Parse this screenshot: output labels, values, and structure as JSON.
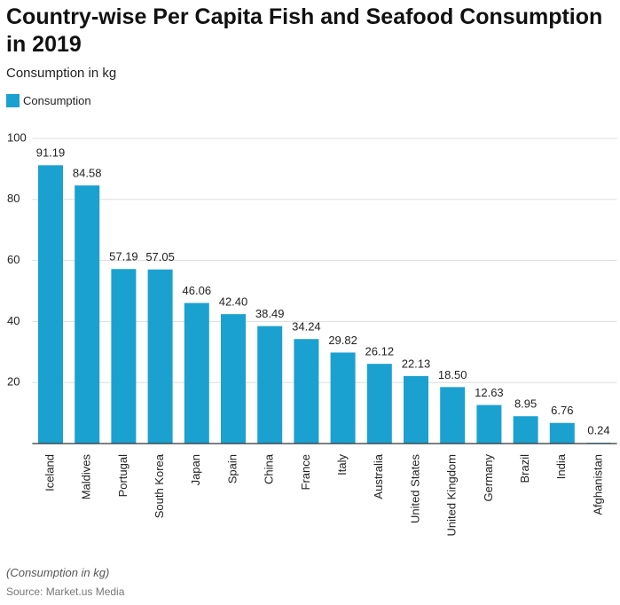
{
  "chart_data": {
    "type": "bar",
    "title": "Country-wise Per Capita Fish and Seafood Consumption in 2019",
    "subtitle": "Consumption in kg",
    "categories": [
      "Iceland",
      "Maldives",
      "Portugal",
      "South Korea",
      "Japan",
      "Spain",
      "China",
      "France",
      "Italy",
      "Australia",
      "United States",
      "United Kingdom",
      "Germany",
      "Brazil",
      "India",
      "Afghanistan"
    ],
    "series": [
      {
        "name": "Consumption",
        "color": "#1ba1d0",
        "values": [
          91.19,
          84.58,
          57.19,
          57.05,
          46.06,
          42.4,
          38.49,
          34.24,
          29.82,
          26.12,
          22.13,
          18.5,
          12.63,
          8.95,
          6.76,
          0.24
        ],
        "value_labels": [
          "91.19",
          "84.58",
          "57.19",
          "57.05",
          "46.06",
          "42.40",
          "38.49",
          "34.24",
          "29.82",
          "26.12",
          "22.13",
          "18.50",
          "12.63",
          "8.95",
          "6.76",
          "0.24"
        ]
      }
    ],
    "ylim": [
      0,
      100
    ],
    "yticks": [
      20,
      40,
      60,
      80,
      100
    ],
    "grid": true,
    "note": "(Consumption in kg)",
    "source": "Source: Market.us Media"
  }
}
